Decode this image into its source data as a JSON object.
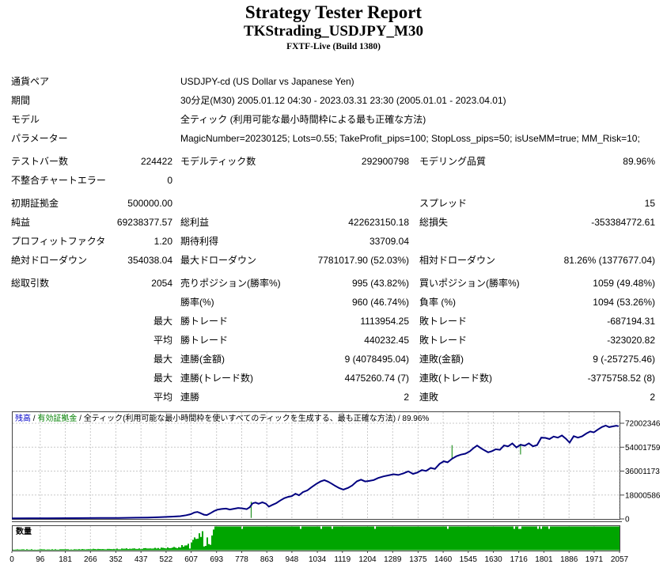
{
  "header": {
    "title": "Strategy Tester Report",
    "subtitle": "TKStrading_USDJPY_M30",
    "build": "FXTF-Live (Build 1380)"
  },
  "table": {
    "info_rows": [
      {
        "label": "通貨ペア",
        "value": "USDJPY-cd (US Dollar vs Japanese Yen)"
      },
      {
        "label": "期間",
        "value": "30分足(M30) 2005.01.12 04:30 - 2023.03.31 23:30 (2005.01.01 - 2023.04.01)"
      },
      {
        "label": "モデル",
        "value": "全ティック (利用可能な最小時間枠による最も正確な方法)"
      },
      {
        "label": "パラメーター",
        "value": "MagicNumber=20230125; Lots=0.55; TakeProfit_pips=100; StopLoss_pips=50; isUseMM=true; MM_Risk=10;"
      }
    ],
    "stat_rows": [
      {
        "g": true,
        "cells": [
          "テストバー数",
          "224422",
          "モデルティック数",
          "292900798",
          "モデリング品質",
          "89.96%"
        ]
      },
      {
        "g": false,
        "cells": [
          "不整合チャートエラー",
          "0",
          "",
          "",
          "",
          ""
        ]
      },
      {
        "g": true,
        "cells": [
          "初期証拠金",
          "500000.00",
          "",
          "",
          "スプレッド",
          "15"
        ]
      },
      {
        "g": false,
        "cells": [
          "純益",
          "69238377.57",
          "総利益",
          "422623150.18",
          "総損失",
          "-353384772.61"
        ]
      },
      {
        "g": false,
        "cells": [
          "プロフィットファクタ",
          "1.20",
          "期待利得",
          "33709.04",
          "",
          ""
        ]
      },
      {
        "g": false,
        "cells": [
          "絶対ドローダウン",
          "354038.04",
          "最大ドローダウン",
          "7781017.90 (52.03%)",
          "相対ドローダウン",
          "81.26% (1377677.04)"
        ]
      },
      {
        "g": true,
        "cells": [
          "総取引数",
          "2054",
          "売りポジション(勝率%)",
          "995 (43.82%)",
          "買いポジション(勝率%)",
          "1059 (49.48%)"
        ]
      },
      {
        "g": false,
        "cells": [
          "",
          "",
          "勝率(%)",
          "960 (46.74%)",
          "負率 (%)",
          "1094 (53.26%)"
        ]
      },
      {
        "g": false,
        "cells": [
          "",
          "最大",
          "勝トレード",
          "1113954.25",
          "敗トレード",
          "-687194.31"
        ]
      },
      {
        "g": false,
        "cells": [
          "",
          "平均",
          "勝トレード",
          "440232.45",
          "敗トレード",
          "-323020.82"
        ]
      },
      {
        "g": false,
        "cells": [
          "",
          "最大",
          "連勝(金額)",
          "9 (4078495.04)",
          "連敗(金額)",
          "9 (-257275.46)"
        ]
      },
      {
        "g": false,
        "cells": [
          "",
          "最大",
          "連勝(トレード数)",
          "4475260.74 (7)",
          "連敗(トレード数)",
          "-3775758.52 (8)"
        ]
      },
      {
        "g": false,
        "cells": [
          "",
          "平均",
          "連勝",
          "2",
          "連敗",
          "2"
        ]
      }
    ]
  },
  "chart_data": {
    "type": "line",
    "legend_segments": [
      {
        "text": "残高",
        "color": "#0000c8"
      },
      {
        "text": " / ",
        "color": "#000000"
      },
      {
        "text": "有効証拠金",
        "color": "#008000"
      },
      {
        "text": " / ",
        "color": "#000000"
      },
      {
        "text": "全ティック(利用可能な最小時間枠を使いすべてのティックを生成する、最も正確な方法) / 89.96%",
        "color": "#000000"
      }
    ],
    "volume_label": "数量",
    "xlim": [
      0,
      2057
    ],
    "ylim": [
      0,
      72002346
    ],
    "x_ticks": [
      0,
      96,
      181,
      266,
      352,
      437,
      522,
      607,
      693,
      778,
      863,
      948,
      1034,
      1119,
      1204,
      1289,
      1375,
      1460,
      1545,
      1630,
      1716,
      1801,
      1886,
      1971,
      2057
    ],
    "y_ticks": [
      0,
      18000586,
      36001173,
      54001759,
      72002346
    ],
    "grid": true,
    "legend_position": "top-left-inside",
    "balance_curve_M": [
      [
        0,
        0.5
      ],
      [
        60,
        0.52
      ],
      [
        120,
        0.55
      ],
      [
        180,
        0.6
      ],
      [
        240,
        0.65
      ],
      [
        300,
        0.72
      ],
      [
        360,
        0.8
      ],
      [
        420,
        0.95
      ],
      [
        460,
        1.1
      ],
      [
        500,
        1.35
      ],
      [
        540,
        1.7
      ],
      [
        570,
        2.1
      ],
      [
        590,
        2.8
      ],
      [
        605,
        3.6
      ],
      [
        618,
        4.9
      ],
      [
        628,
        5.3
      ],
      [
        638,
        4.4
      ],
      [
        650,
        3.2
      ],
      [
        660,
        2.9
      ],
      [
        672,
        4.3
      ],
      [
        684,
        5.9
      ],
      [
        696,
        7.0
      ],
      [
        710,
        7.5
      ],
      [
        725,
        7.8
      ],
      [
        738,
        7.1
      ],
      [
        752,
        7.7
      ],
      [
        766,
        8.3
      ],
      [
        780,
        8.0
      ],
      [
        795,
        7.4
      ],
      [
        805,
        8.8
      ],
      [
        815,
        11.8
      ],
      [
        825,
        12.3
      ],
      [
        835,
        11.4
      ],
      [
        848,
        12.5
      ],
      [
        860,
        11.5
      ],
      [
        870,
        9.3
      ],
      [
        882,
        10.6
      ],
      [
        895,
        11.9
      ],
      [
        908,
        13.8
      ],
      [
        922,
        15.6
      ],
      [
        935,
        16.6
      ],
      [
        948,
        17.2
      ],
      [
        960,
        19.0
      ],
      [
        972,
        17.8
      ],
      [
        985,
        20.2
      ],
      [
        1000,
        21.5
      ],
      [
        1015,
        24.0
      ],
      [
        1030,
        26.3
      ],
      [
        1045,
        28.2
      ],
      [
        1058,
        29.2
      ],
      [
        1070,
        28.1
      ],
      [
        1082,
        26.6
      ],
      [
        1095,
        24.8
      ],
      [
        1108,
        23.2
      ],
      [
        1122,
        22.1
      ],
      [
        1138,
        23.4
      ],
      [
        1152,
        25.2
      ],
      [
        1168,
        28.3
      ],
      [
        1182,
        29.6
      ],
      [
        1196,
        28.2
      ],
      [
        1210,
        28.6
      ],
      [
        1225,
        29.3
      ],
      [
        1240,
        30.8
      ],
      [
        1258,
        32.0
      ],
      [
        1275,
        32.8
      ],
      [
        1292,
        33.6
      ],
      [
        1308,
        33.1
      ],
      [
        1325,
        34.3
      ],
      [
        1342,
        35.8
      ],
      [
        1358,
        33.9
      ],
      [
        1372,
        34.9
      ],
      [
        1388,
        36.8
      ],
      [
        1402,
        36.1
      ],
      [
        1418,
        38.4
      ],
      [
        1432,
        37.6
      ],
      [
        1448,
        41.5
      ],
      [
        1462,
        43.4
      ],
      [
        1475,
        42.6
      ],
      [
        1490,
        45.3
      ],
      [
        1505,
        47.2
      ],
      [
        1520,
        48.4
      ],
      [
        1535,
        49.1
      ],
      [
        1550,
        50.8
      ],
      [
        1562,
        53.2
      ],
      [
        1575,
        55.2
      ],
      [
        1588,
        53.2
      ],
      [
        1600,
        51.6
      ],
      [
        1612,
        50.1
      ],
      [
        1625,
        51.0
      ],
      [
        1638,
        52.4
      ],
      [
        1652,
        52.0
      ],
      [
        1666,
        55.3
      ],
      [
        1680,
        54.6
      ],
      [
        1694,
        56.8
      ],
      [
        1708,
        53.8
      ],
      [
        1722,
        55.8
      ],
      [
        1736,
        55.1
      ],
      [
        1750,
        56.9
      ],
      [
        1764,
        54.7
      ],
      [
        1778,
        55.6
      ],
      [
        1792,
        61.2
      ],
      [
        1806,
        61.0
      ],
      [
        1820,
        60.1
      ],
      [
        1834,
        62.0
      ],
      [
        1848,
        61.2
      ],
      [
        1862,
        62.8
      ],
      [
        1876,
        60.3
      ],
      [
        1888,
        57.4
      ],
      [
        1902,
        62.3
      ],
      [
        1916,
        61.2
      ],
      [
        1930,
        62.1
      ],
      [
        1945,
        64.3
      ],
      [
        1958,
        65.8
      ],
      [
        1970,
        65.1
      ],
      [
        1984,
        67.3
      ],
      [
        1998,
        69.2
      ],
      [
        2010,
        70.3
      ],
      [
        2022,
        69.1
      ],
      [
        2034,
        69.6
      ],
      [
        2046,
        70.1
      ],
      [
        2054,
        69.74
      ]
    ],
    "equity_spikes_M": [
      [
        810,
        13.0,
        0.8
      ],
      [
        1490,
        55.5,
        45.5
      ],
      [
        1722,
        56.5,
        48.5
      ]
    ],
    "volume_profile": [
      [
        0,
        0.03
      ],
      [
        200,
        0.04
      ],
      [
        350,
        0.06
      ],
      [
        450,
        0.08
      ],
      [
        520,
        0.1
      ],
      [
        560,
        0.14
      ],
      [
        590,
        0.22
      ],
      [
        615,
        0.48
      ],
      [
        640,
        0.78
      ],
      [
        665,
        0.88
      ],
      [
        683,
        1.0
      ],
      [
        2057,
        1.0
      ]
    ],
    "colors": {
      "balance_line": "#000080",
      "equity_line": "#008000",
      "volume_fill": "#00a500",
      "grid": "#c9c9c9",
      "border": "#444444",
      "axis_text": "#000000"
    }
  }
}
